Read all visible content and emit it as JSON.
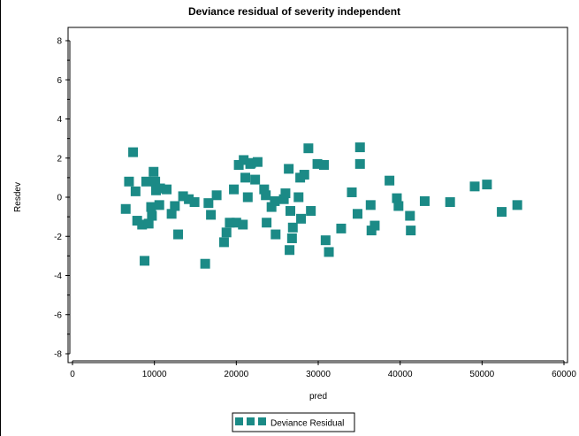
{
  "chart_data": {
    "type": "scatter",
    "title": "Deviance residual of severity independent",
    "xlabel": "pred",
    "ylabel": "Resdev",
    "xlim": [
      0,
      60000
    ],
    "ylim": [
      -8,
      8
    ],
    "x_ticks": [
      "0",
      "10000",
      "20000",
      "30000",
      "40000",
      "50000",
      "60000"
    ],
    "y_ticks": [
      "8",
      "6",
      "4",
      "2",
      "0",
      "-2",
      "-4",
      "-6",
      "-8"
    ],
    "grid": false,
    "legend_position": "bottom-center",
    "marker_color": "#1b8a86",
    "series": [
      {
        "name": "Deviance Residual",
        "points": [
          [
            6500,
            -0.6
          ],
          [
            6900,
            0.8
          ],
          [
            7400,
            2.3
          ],
          [
            7700,
            0.3
          ],
          [
            7900,
            -1.2
          ],
          [
            8500,
            -1.4
          ],
          [
            8800,
            -3.25
          ],
          [
            9000,
            0.8
          ],
          [
            9300,
            -1.35
          ],
          [
            9600,
            -0.5
          ],
          [
            9700,
            -0.95
          ],
          [
            9900,
            1.3
          ],
          [
            10100,
            0.8
          ],
          [
            10200,
            0.35
          ],
          [
            10600,
            -0.4
          ],
          [
            10700,
            0.45
          ],
          [
            11500,
            0.4
          ],
          [
            12100,
            -0.85
          ],
          [
            12500,
            -0.45
          ],
          [
            12900,
            -1.9
          ],
          [
            13500,
            0.05
          ],
          [
            14200,
            -0.1
          ],
          [
            14900,
            -0.25
          ],
          [
            16200,
            -3.4
          ],
          [
            16600,
            -0.3
          ],
          [
            16900,
            -0.9
          ],
          [
            17600,
            0.1
          ],
          [
            18500,
            -2.3
          ],
          [
            18800,
            -1.8
          ],
          [
            19200,
            -1.3
          ],
          [
            19700,
            0.4
          ],
          [
            20000,
            -1.3
          ],
          [
            20300,
            1.65
          ],
          [
            20800,
            -1.4
          ],
          [
            20900,
            1.9
          ],
          [
            21100,
            1.0
          ],
          [
            21400,
            0.0
          ],
          [
            21700,
            1.7
          ],
          [
            21800,
            1.75
          ],
          [
            22300,
            0.9
          ],
          [
            22600,
            1.8
          ],
          [
            23400,
            0.4
          ],
          [
            23600,
            0.1
          ],
          [
            23700,
            -1.3
          ],
          [
            24300,
            -0.5
          ],
          [
            24700,
            -0.2
          ],
          [
            24800,
            -1.9
          ],
          [
            25800,
            -0.1
          ],
          [
            26000,
            0.2
          ],
          [
            26400,
            1.45
          ],
          [
            26500,
            -2.7
          ],
          [
            26600,
            -0.7
          ],
          [
            26800,
            -2.1
          ],
          [
            26900,
            -1.55
          ],
          [
            27600,
            0.0
          ],
          [
            27800,
            1.0
          ],
          [
            27900,
            -1.1
          ],
          [
            28300,
            1.15
          ],
          [
            28800,
            2.5
          ],
          [
            29100,
            -0.7
          ],
          [
            29900,
            1.7
          ],
          [
            30700,
            1.65
          ],
          [
            30900,
            -2.2
          ],
          [
            31300,
            -2.8
          ],
          [
            32800,
            -1.6
          ],
          [
            34100,
            0.25
          ],
          [
            34800,
            -0.85
          ],
          [
            35100,
            2.55
          ],
          [
            35100,
            1.7
          ],
          [
            36400,
            -0.4
          ],
          [
            36500,
            -1.7
          ],
          [
            36900,
            -1.45
          ],
          [
            38700,
            0.85
          ],
          [
            39600,
            -0.05
          ],
          [
            39800,
            -0.45
          ],
          [
            41200,
            -0.95
          ],
          [
            41300,
            -1.7
          ],
          [
            43000,
            -0.2
          ],
          [
            46100,
            -0.25
          ],
          [
            49100,
            0.55
          ],
          [
            50600,
            0.65
          ],
          [
            52400,
            -0.75
          ],
          [
            54300,
            -0.4
          ]
        ]
      }
    ]
  }
}
